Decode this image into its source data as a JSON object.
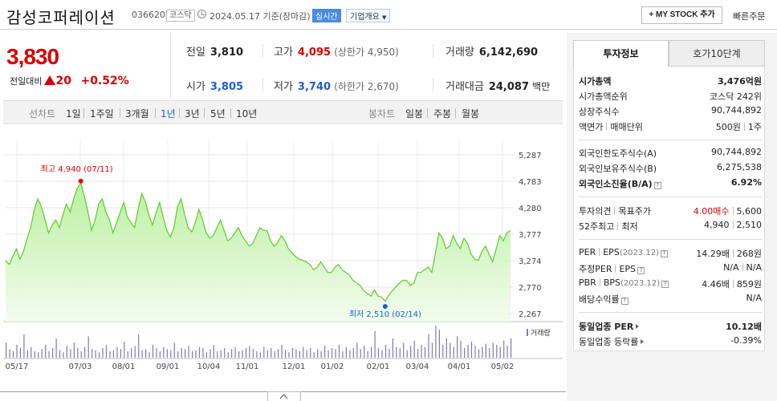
{
  "header": {
    "company_name": "감성코퍼레이션",
    "stock_code": "036620",
    "market_badge": "코스닥",
    "date_text": "2024.05.17 기준(장마감)",
    "realtime_badge": "실시간",
    "company_overview": "기업개요",
    "my_stock_button": "+ MY STOCK 추가",
    "quick_order": "빠른주문"
  },
  "price": {
    "current": "3,830",
    "change_label": "전일대비",
    "change_amount": "20",
    "change_rate": "+0.52%"
  },
  "stats": {
    "prev_close_label": "전일",
    "prev_close": "3,810",
    "high_label": "고가",
    "high": "4,095",
    "upper_limit": "(상한가 4,950)",
    "volume_label": "거래량",
    "volume": "6,142,690",
    "open_label": "시가",
    "open": "3,805",
    "low_label": "저가",
    "low": "3,740",
    "lower_limit": "(하한가 2,670)",
    "turnover_label": "거래대금",
    "turnover": "24,087",
    "turnover_unit": "백만"
  },
  "period_bar": {
    "line_chart": "선차트",
    "periods": [
      "1일",
      "1주일",
      "3개월",
      "1년",
      "3년",
      "5년",
      "10년"
    ],
    "active_period": "1년",
    "candle_chart": "봉차트",
    "candle_periods": [
      "일봉",
      "주봉",
      "월봉"
    ]
  },
  "chart_data": {
    "type": "line",
    "title": "",
    "y_ticks": [
      "5,287",
      "4,783",
      "4,280",
      "3,777",
      "3,274",
      "2,770",
      "2,267"
    ],
    "ylim": [
      2267,
      5287
    ],
    "x_ticks": [
      "05/17",
      "07/03",
      "08/01",
      "09/01",
      "10/04",
      "11/01",
      "12/01",
      "01/02",
      "02/01",
      "03/04",
      "04/01",
      "05/02"
    ],
    "high_annotation": "최고 4,940 (07/11)",
    "low_annotation": "최저 2,510 (02/14)",
    "high_value": 4940,
    "low_value": 2510,
    "volume_label": "거래량",
    "series": [
      {
        "values": [
          3280,
          3200,
          3350,
          3500,
          3300,
          3450,
          3700,
          3900,
          4250,
          4450,
          4300,
          4050,
          3800,
          3950,
          4050,
          3900,
          4150,
          4350,
          4200,
          4450,
          4650,
          4750,
          4500,
          4200,
          3850,
          4050,
          4350,
          4450,
          4200,
          4050,
          3800,
          4000,
          4200,
          4380,
          4100,
          4000,
          3900,
          4250,
          4550,
          4400,
          4150,
          3950,
          4180,
          4380,
          4100,
          3850,
          3720,
          3900,
          4300,
          4450,
          4150,
          3900,
          3820,
          4000,
          4250,
          4050,
          3800,
          3700,
          3750,
          3900,
          4050,
          3850,
          3650,
          3700,
          3800,
          3900,
          3750,
          3650,
          3550,
          3600,
          3750,
          3900,
          3850,
          3850,
          3650,
          3550,
          3620,
          3750,
          3650,
          3500,
          3420,
          3350,
          3300,
          3280,
          3250,
          3200,
          3100,
          3150,
          3250,
          3150,
          3050,
          3050,
          3150,
          3200,
          3100,
          3050,
          3000,
          2900,
          2850,
          2800,
          2700,
          2650,
          2600,
          2720,
          2600,
          2580,
          2500,
          2620,
          2700,
          2780,
          2850,
          2900,
          2900,
          2800,
          2850,
          3050,
          3050,
          3100,
          3150,
          3050,
          3400,
          3800,
          3700,
          3500,
          3550,
          3750,
          3600,
          3500,
          3700,
          3600,
          3400,
          3300,
          3280,
          3450,
          3550,
          3400,
          3250,
          3500,
          3750,
          3650,
          3800,
          3850
        ]
      }
    ],
    "volume": [
      14,
      8,
      6,
      12,
      9,
      22,
      7,
      10,
      6,
      5,
      8,
      12,
      6,
      9,
      18,
      7,
      5,
      11,
      8,
      14,
      9,
      6,
      10,
      20,
      8,
      7,
      5,
      9,
      12,
      6,
      7,
      10,
      8,
      15,
      6,
      9,
      11,
      22,
      7,
      8,
      5,
      12,
      9,
      6,
      10,
      8,
      7,
      14,
      6,
      9,
      8,
      11,
      6,
      7,
      10,
      9,
      5,
      8,
      12,
      6,
      7,
      9,
      5,
      8,
      10,
      6,
      7,
      9,
      11,
      8,
      6,
      5,
      10,
      7,
      9,
      6,
      8,
      12,
      7,
      5,
      9,
      8,
      6,
      10,
      7,
      9,
      5,
      8,
      6,
      11,
      7,
      9,
      8,
      12,
      6,
      10,
      7,
      9,
      14,
      8,
      11,
      6,
      10,
      25,
      9,
      7,
      12,
      8,
      18,
      10,
      9,
      14,
      7,
      11,
      16,
      8,
      12,
      10,
      22,
      14,
      30,
      26,
      12,
      18,
      14,
      10,
      20,
      16,
      9,
      12,
      15,
      11,
      8,
      10,
      13,
      9,
      14,
      12,
      10,
      16,
      11,
      18
    ]
  },
  "right_panel": {
    "tab_invest": "투자정보",
    "tab_quote": "호가10단계",
    "rows": {
      "mcap_label": "시가총액",
      "mcap": "3,476억원",
      "mcap_rank_label": "시가총액순위",
      "mcap_rank": "코스닥 242위",
      "shares_label": "상장주식수",
      "shares": "90,744,892",
      "facevalue_label": "액면가",
      "trade_unit_label": "매매단위",
      "facevalue": "500원",
      "trade_unit": "1주",
      "foreign_limit_label": "외국인한도주식수(A)",
      "foreign_limit": "90,744,892",
      "foreign_hold_label": "외국인보유주식수(B)",
      "foreign_hold": "6,275,538",
      "foreign_ratio_label": "외국인소진율(B/A)",
      "foreign_ratio": "6.92%",
      "opinion_label": "투자의견",
      "target_label": "목표주가",
      "opinion": "4.00매수",
      "target": "5,600",
      "week52_label": "52주최고",
      "week52_low_label": "최저",
      "week52_high": "4,940",
      "week52_low": "2,510",
      "per_label": "PER",
      "eps_label": "EPS",
      "eps_period": "(2023.12)",
      "per": "14.29배",
      "eps": "268원",
      "est_per_label": "추정PER",
      "est_eps_label": "EPS",
      "est_per": "N/A",
      "est_eps": "N/A",
      "pbr_label": "PBR",
      "bps_label": "BPS",
      "bps_period": "(2023.12)",
      "pbr": "4.46배",
      "bps": "859원",
      "dividend_label": "배당수익률",
      "dividend": "N/A",
      "industry_per_label": "동일업종 PER",
      "industry_per": "10.12배",
      "industry_chg_label": "동일업종 등락률",
      "industry_chg": "-0.39%"
    }
  }
}
